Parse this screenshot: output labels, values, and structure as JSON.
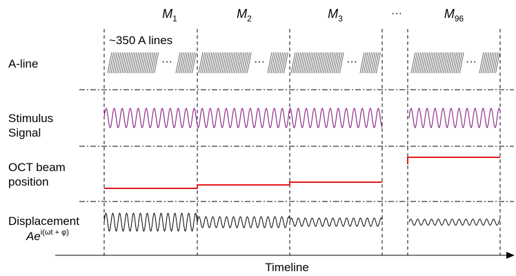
{
  "column_labels": [
    {
      "base": "M",
      "sub": "1"
    },
    {
      "base": "M",
      "sub": "2"
    },
    {
      "base": "M",
      "sub": "3"
    },
    {
      "base": "M",
      "sub": "96"
    }
  ],
  "ellipsis": "···",
  "aline_annotation": "~350 A lines",
  "row_labels": {
    "aline": "A-line",
    "stimulus_1": "Stimulus",
    "stimulus_2": "Signal",
    "beam_1": "OCT beam",
    "beam_2": "position",
    "displacement_1": "Displacement",
    "displacement_2_base": "Ae",
    "displacement_2_exp": "i(ωt + φ)"
  },
  "timeline_label": "Timeline",
  "colors": {
    "stimulus": "#8b2a8b",
    "beam": "#e41a1c",
    "displacement": "#000000",
    "aline_hatch": "#666666",
    "guide": "#000000"
  }
}
